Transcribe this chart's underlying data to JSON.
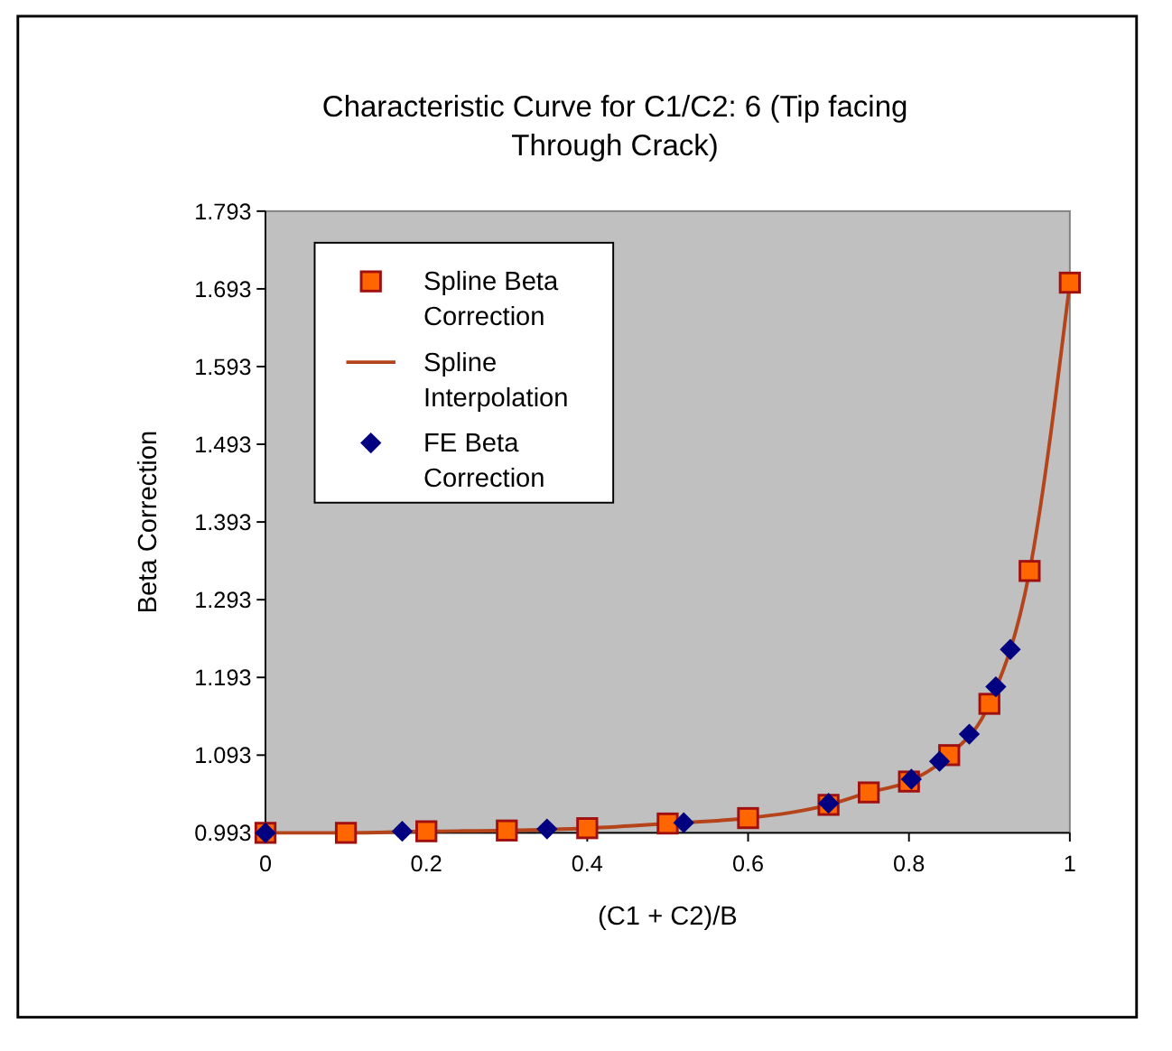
{
  "chart_data": {
    "type": "scatter",
    "title": "Characteristic Curve for C1/C2: 6 (Tip facing Through Crack)",
    "xlabel": "(C1 + C2)/B",
    "ylabel": "Beta Correction",
    "xlim": [
      0,
      1
    ],
    "xticks": [
      0,
      0.2,
      0.4,
      0.6,
      0.8,
      1
    ],
    "ylim": [
      0.993,
      1.793
    ],
    "yticks": [
      0.993,
      1.093,
      1.193,
      1.293,
      1.393,
      1.493,
      1.593,
      1.693,
      1.793
    ],
    "grid": false,
    "legend": "top left",
    "series": [
      {
        "name": "Spline Beta Correction",
        "marker": "square",
        "color": "#ff6600",
        "x": [
          0,
          0.1,
          0.2,
          0.3,
          0.4,
          0.5,
          0.6,
          0.7,
          0.75,
          0.8,
          0.85,
          0.9,
          0.95,
          1
        ],
        "values": [
          0.993,
          0.993,
          0.995,
          0.996,
          0.999,
          1.005,
          1.012,
          1.029,
          1.045,
          1.059,
          1.093,
          1.159,
          1.33,
          1.701
        ]
      },
      {
        "name": "Spline Interpolation",
        "type": "line",
        "marker": "none",
        "color": "#b5441a",
        "x": [
          0,
          0.1,
          0.2,
          0.3,
          0.4,
          0.5,
          0.6,
          0.7,
          0.75,
          0.8,
          0.85,
          0.9,
          0.95,
          1
        ],
        "values": [
          0.993,
          0.993,
          0.995,
          0.996,
          0.999,
          1.005,
          1.012,
          1.029,
          1.045,
          1.059,
          1.093,
          1.159,
          1.33,
          1.701
        ]
      },
      {
        "name": "FE Beta Correction",
        "marker": "diamond",
        "color": "#000080",
        "x": [
          0,
          0.17,
          0.35,
          0.52,
          0.7,
          0.803,
          0.838,
          0.875,
          0.908,
          0.926
        ],
        "values": [
          0.993,
          0.995,
          0.998,
          1.006,
          1.031,
          1.062,
          1.085,
          1.12,
          1.181,
          1.229
        ]
      }
    ]
  }
}
